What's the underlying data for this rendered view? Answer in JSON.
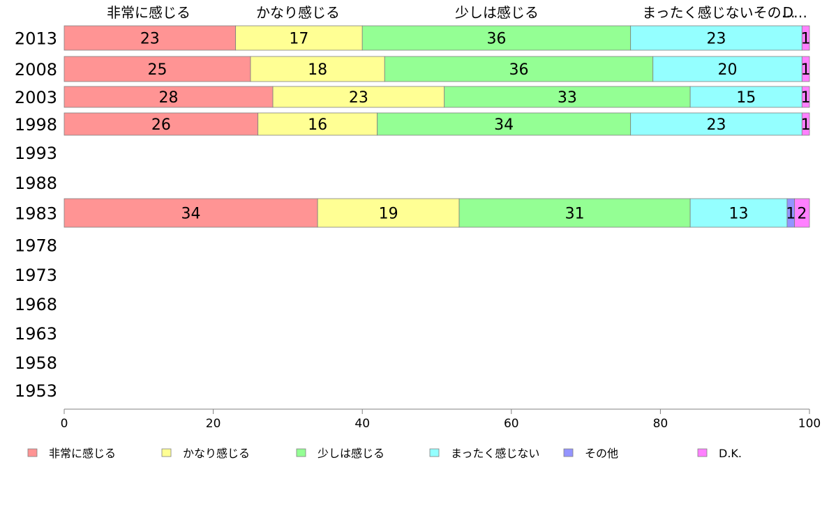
{
  "chart_data": {
    "type": "bar",
    "orientation": "horizontal",
    "stacked": true,
    "categories": [
      "2013",
      "2008",
      "2003",
      "1998",
      "1993",
      "1988",
      "1983",
      "1978",
      "1973",
      "1968",
      "1963",
      "1958",
      "1953"
    ],
    "series": [
      {
        "name": "非常に感じる",
        "color": "#ff9494",
        "values": [
          23,
          25,
          28,
          26,
          null,
          null,
          34,
          null,
          null,
          null,
          null,
          null,
          null
        ]
      },
      {
        "name": "かなり感じる",
        "color": "#ffff94",
        "values": [
          17,
          18,
          23,
          16,
          null,
          null,
          19,
          null,
          null,
          null,
          null,
          null,
          null
        ]
      },
      {
        "name": "少しは感じる",
        "color": "#94ff94",
        "values": [
          36,
          36,
          33,
          34,
          null,
          null,
          31,
          null,
          null,
          null,
          null,
          null,
          null
        ]
      },
      {
        "name": "まったく感じない",
        "color": "#94ffff",
        "values": [
          23,
          20,
          15,
          23,
          null,
          null,
          13,
          null,
          null,
          null,
          null,
          null,
          null
        ]
      },
      {
        "name": "その他",
        "color": "#9494ff",
        "values": [
          0,
          0,
          0,
          0,
          null,
          null,
          1,
          null,
          null,
          null,
          null,
          null,
          null
        ]
      },
      {
        "name": "D.K.",
        "color": "#ff80ff",
        "values": [
          1,
          1,
          1,
          1,
          null,
          null,
          2,
          null,
          null,
          null,
          null,
          null,
          null
        ]
      }
    ],
    "value_labels": [
      [
        "23",
        "17",
        "36",
        "23",
        "",
        "1"
      ],
      [
        "25",
        "18",
        "36",
        "20",
        "",
        "1"
      ],
      [
        "28",
        "23",
        "33",
        "15",
        "",
        "1"
      ],
      [
        "26",
        "16",
        "34",
        "23",
        "",
        "1"
      ],
      null,
      null,
      [
        "34",
        "19",
        "31",
        "13",
        "1",
        "2"
      ],
      null,
      null,
      null,
      null,
      null,
      null
    ],
    "top_labels": [
      "非常に感じる",
      "かなり感じる",
      "少しは感じる",
      "まったく感じないその…",
      "D…"
    ],
    "xlim": [
      0,
      100
    ],
    "xticks": [
      0,
      20,
      40,
      60,
      80,
      100
    ],
    "title": "",
    "xlabel": "",
    "ylabel": "",
    "grid": false,
    "legend_position": "bottom"
  }
}
